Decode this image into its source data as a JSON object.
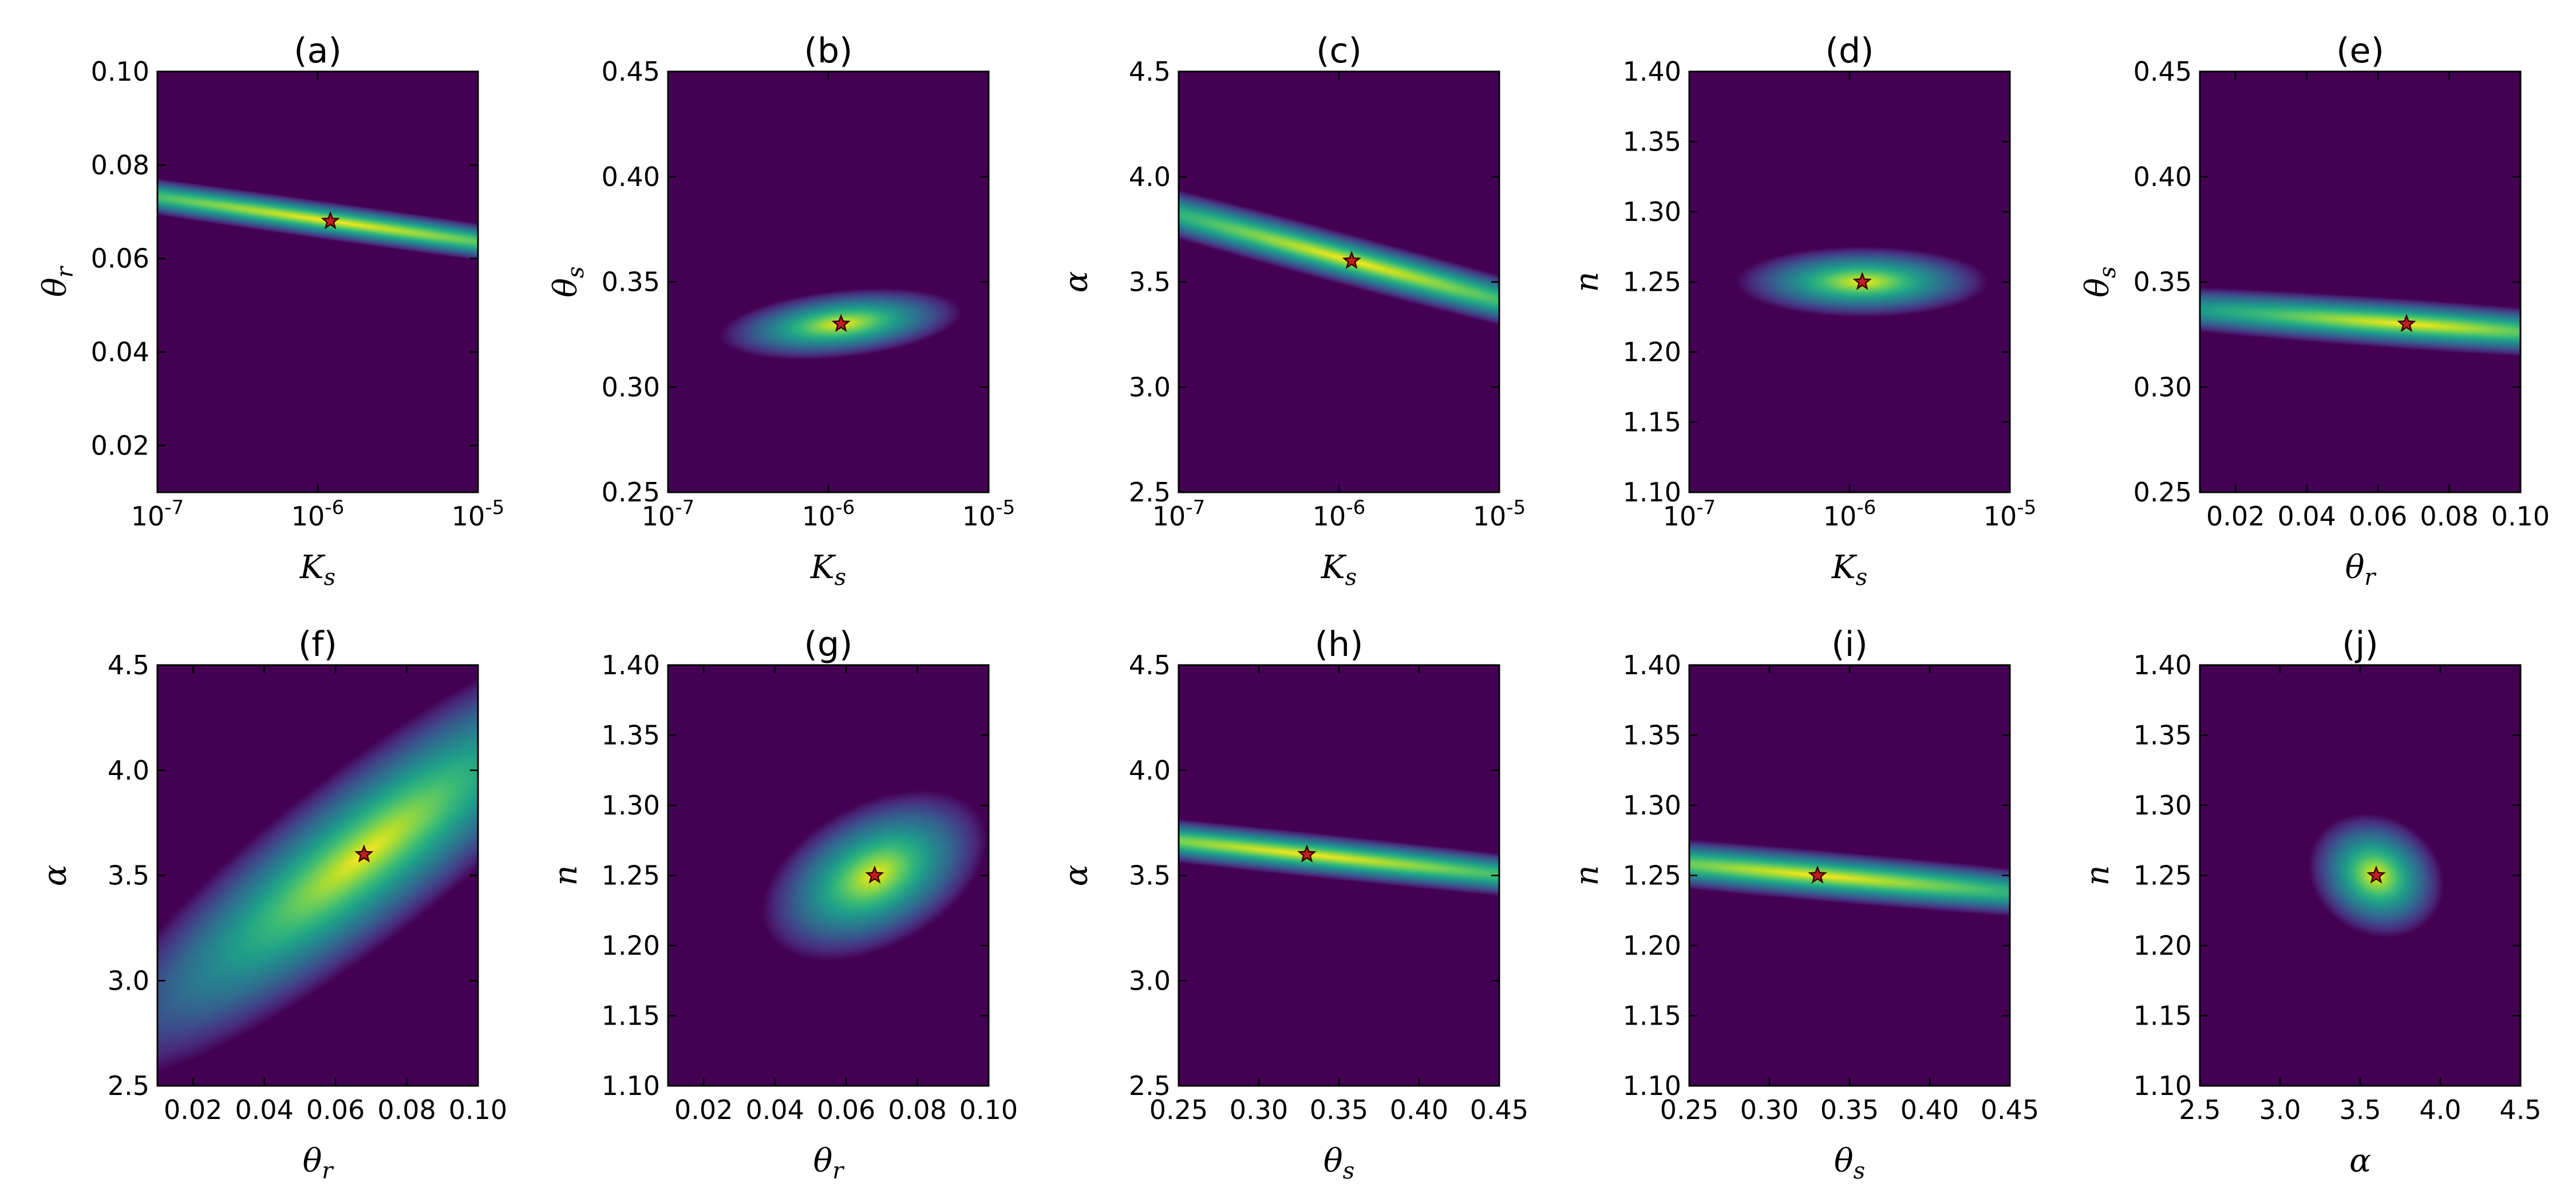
{
  "colors": {
    "viridis": [
      "#440154",
      "#482878",
      "#3e4989",
      "#31688e",
      "#26828e",
      "#1f9e89",
      "#35b779",
      "#6ece58",
      "#b5de2b",
      "#fde725"
    ],
    "marker_fill": "#c41e1e",
    "marker_stroke": "#3a0000"
  },
  "chart_data": [
    {
      "panel": "a",
      "title": "(a)",
      "type": "heatmap",
      "xlabel": "K",
      "xlabel_sub": "s",
      "ylabel": "θ",
      "ylabel_sub": "r",
      "xscale": "log",
      "xlim": [
        1e-07,
        1e-05
      ],
      "ylim": [
        0.01,
        0.1
      ],
      "xticks": [
        {
          "value": 1e-07,
          "base": "10",
          "exp": "-7"
        },
        {
          "value": 1e-06,
          "base": "10",
          "exp": "-6"
        },
        {
          "value": 1e-05,
          "base": "10",
          "exp": "-5"
        }
      ],
      "yticks": [
        {
          "value": 0.02,
          "label": "0.02"
        },
        {
          "value": 0.04,
          "label": "0.04"
        },
        {
          "value": 0.06,
          "label": "0.06"
        },
        {
          "value": 0.08,
          "label": "0.08"
        },
        {
          "value": 0.1,
          "label": "0.10"
        }
      ],
      "optimum": {
        "x": 1.2e-06,
        "y": 0.068,
        "marker": "star"
      },
      "field": {
        "rx": 0.06,
        "ry": 1.4,
        "rot": -82
      }
    },
    {
      "panel": "b",
      "title": "(b)",
      "type": "heatmap",
      "xlabel": "K",
      "xlabel_sub": "s",
      "ylabel": "θ",
      "ylabel_sub": "s",
      "xscale": "log",
      "xlim": [
        1e-07,
        1e-05
      ],
      "ylim": [
        0.25,
        0.45
      ],
      "xticks": [
        {
          "value": 1e-07,
          "base": "10",
          "exp": "-7"
        },
        {
          "value": 1e-06,
          "base": "10",
          "exp": "-6"
        },
        {
          "value": 1e-05,
          "base": "10",
          "exp": "-5"
        }
      ],
      "yticks": [
        {
          "value": 0.25,
          "label": "0.25"
        },
        {
          "value": 0.3,
          "label": "0.30"
        },
        {
          "value": 0.35,
          "label": "0.35"
        },
        {
          "value": 0.4,
          "label": "0.40"
        },
        {
          "value": 0.45,
          "label": "0.45"
        }
      ],
      "optimum": {
        "x": 1.2e-06,
        "y": 0.33,
        "marker": "star"
      },
      "field": {
        "rx": 0.38,
        "ry": 0.08,
        "rot": -6
      }
    },
    {
      "panel": "c",
      "title": "(c)",
      "type": "heatmap",
      "xlabel": "K",
      "xlabel_sub": "s",
      "ylabel": "α",
      "ylabel_sub": "",
      "xscale": "log",
      "xlim": [
        1e-07,
        1e-05
      ],
      "ylim": [
        2.5,
        4.5
      ],
      "xticks": [
        {
          "value": 1e-07,
          "base": "10",
          "exp": "-7"
        },
        {
          "value": 1e-06,
          "base": "10",
          "exp": "-6"
        },
        {
          "value": 1e-05,
          "base": "10",
          "exp": "-5"
        }
      ],
      "yticks": [
        {
          "value": 2.5,
          "label": "2.5"
        },
        {
          "value": 3.0,
          "label": "3.0"
        },
        {
          "value": 3.5,
          "label": "3.5"
        },
        {
          "value": 4.0,
          "label": "4.0"
        },
        {
          "value": 4.5,
          "label": "4.5"
        }
      ],
      "optimum": {
        "x": 1.2e-06,
        "y": 3.6,
        "marker": "star"
      },
      "field": {
        "rx": 0.08,
        "ry": 1.2,
        "rot": -75
      }
    },
    {
      "panel": "d",
      "title": "(d)",
      "type": "heatmap",
      "xlabel": "K",
      "xlabel_sub": "s",
      "ylabel": "n",
      "ylabel_sub": "",
      "xscale": "log",
      "xlim": [
        1e-07,
        1e-05
      ],
      "ylim": [
        1.1,
        1.4
      ],
      "xticks": [
        {
          "value": 1e-07,
          "base": "10",
          "exp": "-7"
        },
        {
          "value": 1e-06,
          "base": "10",
          "exp": "-6"
        },
        {
          "value": 1e-05,
          "base": "10",
          "exp": "-5"
        }
      ],
      "yticks": [
        {
          "value": 1.1,
          "label": "1.10"
        },
        {
          "value": 1.15,
          "label": "1.15"
        },
        {
          "value": 1.2,
          "label": "1.20"
        },
        {
          "value": 1.25,
          "label": "1.25"
        },
        {
          "value": 1.3,
          "label": "1.30"
        },
        {
          "value": 1.35,
          "label": "1.35"
        },
        {
          "value": 1.4,
          "label": "1.40"
        }
      ],
      "optimum": {
        "x": 1.2e-06,
        "y": 1.25,
        "marker": "star"
      },
      "field": {
        "rx": 0.11,
        "ry": 0.3,
        "rot": -90
      }
    },
    {
      "panel": "e",
      "title": "(e)",
      "type": "heatmap",
      "xlabel": "θ",
      "xlabel_sub": "r",
      "ylabel": "θ",
      "ylabel_sub": "s",
      "xscale": "linear",
      "xlim": [
        0.01,
        0.1
      ],
      "ylim": [
        0.25,
        0.45
      ],
      "xticks": [
        {
          "value": 0.02,
          "label": "0.02"
        },
        {
          "value": 0.04,
          "label": "0.04"
        },
        {
          "value": 0.06,
          "label": "0.06"
        },
        {
          "value": 0.08,
          "label": "0.08"
        },
        {
          "value": 0.1,
          "label": "0.10"
        }
      ],
      "yticks": [
        {
          "value": 0.25,
          "label": "0.25"
        },
        {
          "value": 0.3,
          "label": "0.30"
        },
        {
          "value": 0.35,
          "label": "0.35"
        },
        {
          "value": 0.4,
          "label": "0.40"
        },
        {
          "value": 0.45,
          "label": "0.45"
        }
      ],
      "optimum": {
        "x": 0.068,
        "y": 0.33,
        "marker": "star"
      },
      "field": {
        "rx": 1.4,
        "ry": 0.06,
        "rot": 4
      }
    },
    {
      "panel": "f",
      "title": "(f)",
      "type": "heatmap",
      "xlabel": "θ",
      "xlabel_sub": "r",
      "ylabel": "α",
      "ylabel_sub": "",
      "xscale": "linear",
      "xlim": [
        0.01,
        0.1
      ],
      "ylim": [
        2.5,
        4.5
      ],
      "xticks": [
        {
          "value": 0.02,
          "label": "0.02"
        },
        {
          "value": 0.04,
          "label": "0.04"
        },
        {
          "value": 0.06,
          "label": "0.06"
        },
        {
          "value": 0.08,
          "label": "0.08"
        },
        {
          "value": 0.1,
          "label": "0.10"
        }
      ],
      "yticks": [
        {
          "value": 2.5,
          "label": "2.5"
        },
        {
          "value": 3.0,
          "label": "3.0"
        },
        {
          "value": 3.5,
          "label": "3.5"
        },
        {
          "value": 4.0,
          "label": "4.0"
        },
        {
          "value": 4.5,
          "label": "4.5"
        }
      ],
      "optimum": {
        "x": 0.068,
        "y": 3.6,
        "marker": "star"
      },
      "field": {
        "rx": 1.1,
        "ry": 0.2,
        "rot": -38
      }
    },
    {
      "panel": "g",
      "title": "(g)",
      "type": "heatmap",
      "xlabel": "θ",
      "xlabel_sub": "r",
      "ylabel": "n",
      "ylabel_sub": "",
      "xscale": "linear",
      "xlim": [
        0.01,
        0.1
      ],
      "ylim": [
        1.1,
        1.4
      ],
      "xticks": [
        {
          "value": 0.02,
          "label": "0.02"
        },
        {
          "value": 0.04,
          "label": "0.04"
        },
        {
          "value": 0.06,
          "label": "0.06"
        },
        {
          "value": 0.08,
          "label": "0.08"
        },
        {
          "value": 0.1,
          "label": "0.10"
        }
      ],
      "yticks": [
        {
          "value": 1.1,
          "label": "1.10"
        },
        {
          "value": 1.15,
          "label": "1.15"
        },
        {
          "value": 1.2,
          "label": "1.20"
        },
        {
          "value": 1.25,
          "label": "1.25"
        },
        {
          "value": 1.3,
          "label": "1.30"
        },
        {
          "value": 1.35,
          "label": "1.35"
        },
        {
          "value": 1.4,
          "label": "1.40"
        }
      ],
      "optimum": {
        "x": 0.068,
        "y": 1.25,
        "marker": "star"
      },
      "field": {
        "rx": 0.38,
        "ry": 0.17,
        "rot": -28
      }
    },
    {
      "panel": "h",
      "title": "(h)",
      "type": "heatmap",
      "xlabel": "θ",
      "xlabel_sub": "s",
      "ylabel": "α",
      "ylabel_sub": "",
      "xscale": "linear",
      "xlim": [
        0.25,
        0.45
      ],
      "ylim": [
        2.5,
        4.5
      ],
      "xticks": [
        {
          "value": 0.25,
          "label": "0.25"
        },
        {
          "value": 0.3,
          "label": "0.30"
        },
        {
          "value": 0.35,
          "label": "0.35"
        },
        {
          "value": 0.4,
          "label": "0.40"
        },
        {
          "value": 0.45,
          "label": "0.45"
        }
      ],
      "yticks": [
        {
          "value": 2.5,
          "label": "2.5"
        },
        {
          "value": 3.0,
          "label": "3.0"
        },
        {
          "value": 3.5,
          "label": "3.5"
        },
        {
          "value": 4.0,
          "label": "4.0"
        },
        {
          "value": 4.5,
          "label": "4.5"
        }
      ],
      "optimum": {
        "x": 0.33,
        "y": 3.6,
        "marker": "star"
      },
      "field": {
        "rx": 0.07,
        "ry": 1.5,
        "rot": -84
      }
    },
    {
      "panel": "i",
      "title": "(i)",
      "type": "heatmap",
      "xlabel": "θ",
      "xlabel_sub": "s",
      "ylabel": "n",
      "ylabel_sub": "",
      "xscale": "linear",
      "xlim": [
        0.25,
        0.45
      ],
      "ylim": [
        1.1,
        1.4
      ],
      "xticks": [
        {
          "value": 0.25,
          "label": "0.25"
        },
        {
          "value": 0.3,
          "label": "0.30"
        },
        {
          "value": 0.35,
          "label": "0.35"
        },
        {
          "value": 0.4,
          "label": "0.40"
        },
        {
          "value": 0.45,
          "label": "0.45"
        }
      ],
      "yticks": [
        {
          "value": 1.1,
          "label": "1.10"
        },
        {
          "value": 1.15,
          "label": "1.15"
        },
        {
          "value": 1.2,
          "label": "1.20"
        },
        {
          "value": 1.25,
          "label": "1.25"
        },
        {
          "value": 1.3,
          "label": "1.30"
        },
        {
          "value": 1.35,
          "label": "1.35"
        },
        {
          "value": 1.4,
          "label": "1.40"
        }
      ],
      "optimum": {
        "x": 0.33,
        "y": 1.25,
        "marker": "star"
      },
      "field": {
        "rx": 0.08,
        "ry": 1.3,
        "rot": -85
      }
    },
    {
      "panel": "j",
      "title": "(j)",
      "type": "heatmap",
      "xlabel": "α",
      "xlabel_sub": "",
      "ylabel": "n",
      "ylabel_sub": "",
      "xscale": "linear",
      "xlim": [
        2.5,
        4.5
      ],
      "ylim": [
        1.1,
        1.4
      ],
      "xticks": [
        {
          "value": 2.5,
          "label": "2.5"
        },
        {
          "value": 3.0,
          "label": "3.0"
        },
        {
          "value": 3.5,
          "label": "3.5"
        },
        {
          "value": 4.0,
          "label": "4.0"
        },
        {
          "value": 4.5,
          "label": "4.5"
        }
      ],
      "yticks": [
        {
          "value": 1.1,
          "label": "1.10"
        },
        {
          "value": 1.15,
          "label": "1.15"
        },
        {
          "value": 1.2,
          "label": "1.20"
        },
        {
          "value": 1.25,
          "label": "1.25"
        },
        {
          "value": 1.3,
          "label": "1.30"
        },
        {
          "value": 1.35,
          "label": "1.35"
        },
        {
          "value": 1.4,
          "label": "1.40"
        }
      ],
      "optimum": {
        "x": 3.6,
        "y": 1.25,
        "marker": "star"
      },
      "field": {
        "rx": 0.22,
        "ry": 0.14,
        "rot": 30
      }
    }
  ]
}
